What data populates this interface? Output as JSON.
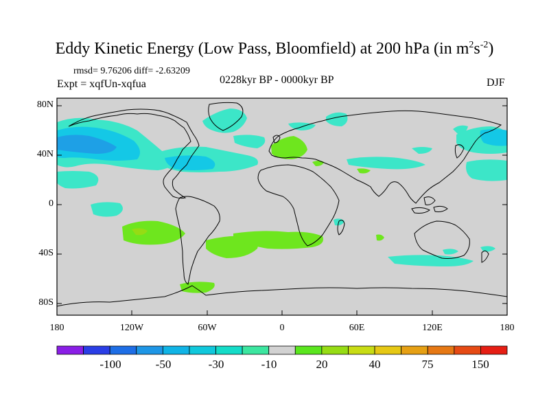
{
  "title": {
    "main": "Eddy Kinetic Energy (Low Pass, Bloomfield) at 200 hPa (in m",
    "sup1": "2",
    "mid": "s",
    "sup2": "-2",
    "end": ")"
  },
  "stats": "rmsd= 9.76206 diff= -2.63209",
  "expt": "Expt = xqfUn-xqfua",
  "period": "0228kyr BP - 0000kyr BP",
  "season": "DJF",
  "map": {
    "ocean_color": "#d2d2d2",
    "coast_color": "#000000",
    "lat_labels": [
      "80N",
      "40N",
      "0",
      "40S",
      "80S"
    ],
    "lon_labels": [
      "180",
      "120W",
      "60W",
      "0",
      "60E",
      "120E",
      "180"
    ]
  },
  "colorbar": {
    "colors": [
      "#8a1ee6",
      "#2a3ee6",
      "#1e6ee6",
      "#1e96e6",
      "#10b4e6",
      "#10c8dc",
      "#14dcc8",
      "#3ce6a0",
      "#d2d2d2",
      "#5ae61e",
      "#96dc14",
      "#c8dc14",
      "#e6c814",
      "#e6a014",
      "#e67814",
      "#e64a14",
      "#e61e14"
    ],
    "labels": [
      "-100",
      "-50",
      "-30",
      "-10",
      "20",
      "40",
      "75",
      "150"
    ]
  },
  "legend_colors": {
    "cyan_light": "#3ce6c8",
    "cyan": "#14c8e6",
    "blue": "#1ea0e6",
    "green": "#6ee61e"
  }
}
